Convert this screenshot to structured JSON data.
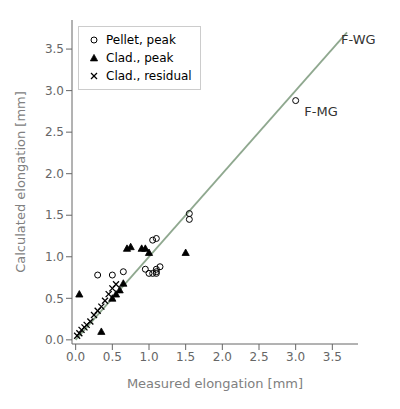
{
  "chart_data": {
    "type": "scatter",
    "x_label": "Measured elongation [mm]",
    "y_label": "Calculated elongation [mm]",
    "xlim": [
      -0.05,
      3.85
    ],
    "ylim": [
      -0.05,
      3.85
    ],
    "xticks": [
      {
        "value": 0,
        "label": "0.0"
      },
      0.5,
      {
        "value": 1,
        "label": "1.0"
      },
      1.5,
      {
        "value": 2,
        "label": "2.0"
      },
      2.5,
      {
        "value": 3,
        "label": "3.0"
      },
      3.5
    ],
    "yticks": [
      {
        "value": 0,
        "label": "0.0"
      },
      0.5,
      {
        "value": 1,
        "label": "1.0"
      },
      1.5,
      {
        "value": 2,
        "label": "2.0"
      },
      2.5,
      {
        "value": 3,
        "label": "3.0"
      },
      3.5
    ],
    "legend": "upper left",
    "series": [
      {
        "type": "line",
        "color": "#8fa88f",
        "x": [
          0,
          3.7
        ],
        "y": [
          0,
          3.7
        ]
      },
      {
        "name": "Pellet, peak",
        "marker": "open_circle",
        "color": "black",
        "x": [
          0.3,
          0.5,
          0.65,
          0.95,
          1.0,
          1.05,
          1.05,
          1.1,
          1.55,
          3.0,
          1.1,
          1.1,
          1.1,
          1.15,
          1.55
        ],
        "y": [
          0.78,
          0.78,
          0.82,
          0.85,
          0.8,
          0.8,
          1.2,
          1.22,
          1.52,
          2.88,
          0.8,
          0.82,
          0.85,
          0.88,
          1.45
        ]
      },
      {
        "name": "Clad., peak",
        "marker": "triangle",
        "color": "black",
        "x": [
          0.05,
          0.35,
          0.5,
          0.55,
          0.6,
          0.65,
          0.7,
          0.75,
          0.9,
          0.95,
          1.0,
          1.5
        ],
        "y": [
          0.55,
          0.1,
          0.5,
          0.55,
          0.6,
          0.68,
          1.1,
          1.12,
          1.1,
          1.1,
          1.05,
          1.05
        ]
      },
      {
        "name": "Clad., residual",
        "marker": "x",
        "color": "black",
        "x": [
          0.02,
          0.05,
          0.08,
          0.12,
          0.15,
          0.2,
          0.25,
          0.3,
          0.35,
          0.4,
          0.45,
          0.5,
          0.55
        ],
        "y": [
          0.05,
          0.08,
          0.12,
          0.15,
          0.18,
          0.22,
          0.3,
          0.35,
          0.4,
          0.47,
          0.55,
          0.62,
          0.67
        ]
      }
    ],
    "annotations": [
      {
        "text": "F-WG",
        "x": 3.55,
        "y": 3.62
      },
      {
        "text": "F-MG",
        "x": 3.05,
        "y": 2.75
      }
    ]
  }
}
